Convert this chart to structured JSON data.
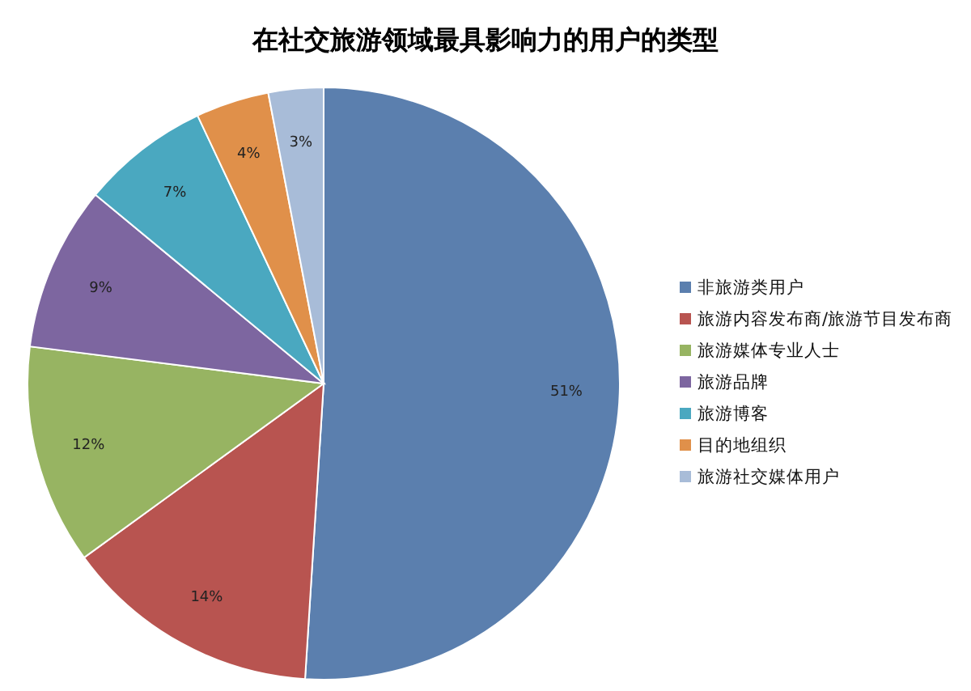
{
  "chart_data": {
    "type": "pie",
    "title": "在社交旅游领域最具影响力的用户的类型",
    "categories": [
      "非旅游类用户",
      "旅游内容发布商/旅游节目发布商",
      "旅游媒体专业人士",
      "旅游品牌",
      "旅游博客",
      "目的地组织",
      "旅游社交媒体用户"
    ],
    "values": [
      51,
      14,
      12,
      9,
      7,
      4,
      3
    ],
    "colors": [
      "#5b7fae",
      "#b85450",
      "#97b462",
      "#7d66a0",
      "#4aa8c0",
      "#e0904a",
      "#a8bcd8"
    ],
    "value_labels": [
      "51%",
      "14%",
      "12%",
      "9%",
      "7%",
      "4%",
      "3%"
    ],
    "legend": "right"
  }
}
